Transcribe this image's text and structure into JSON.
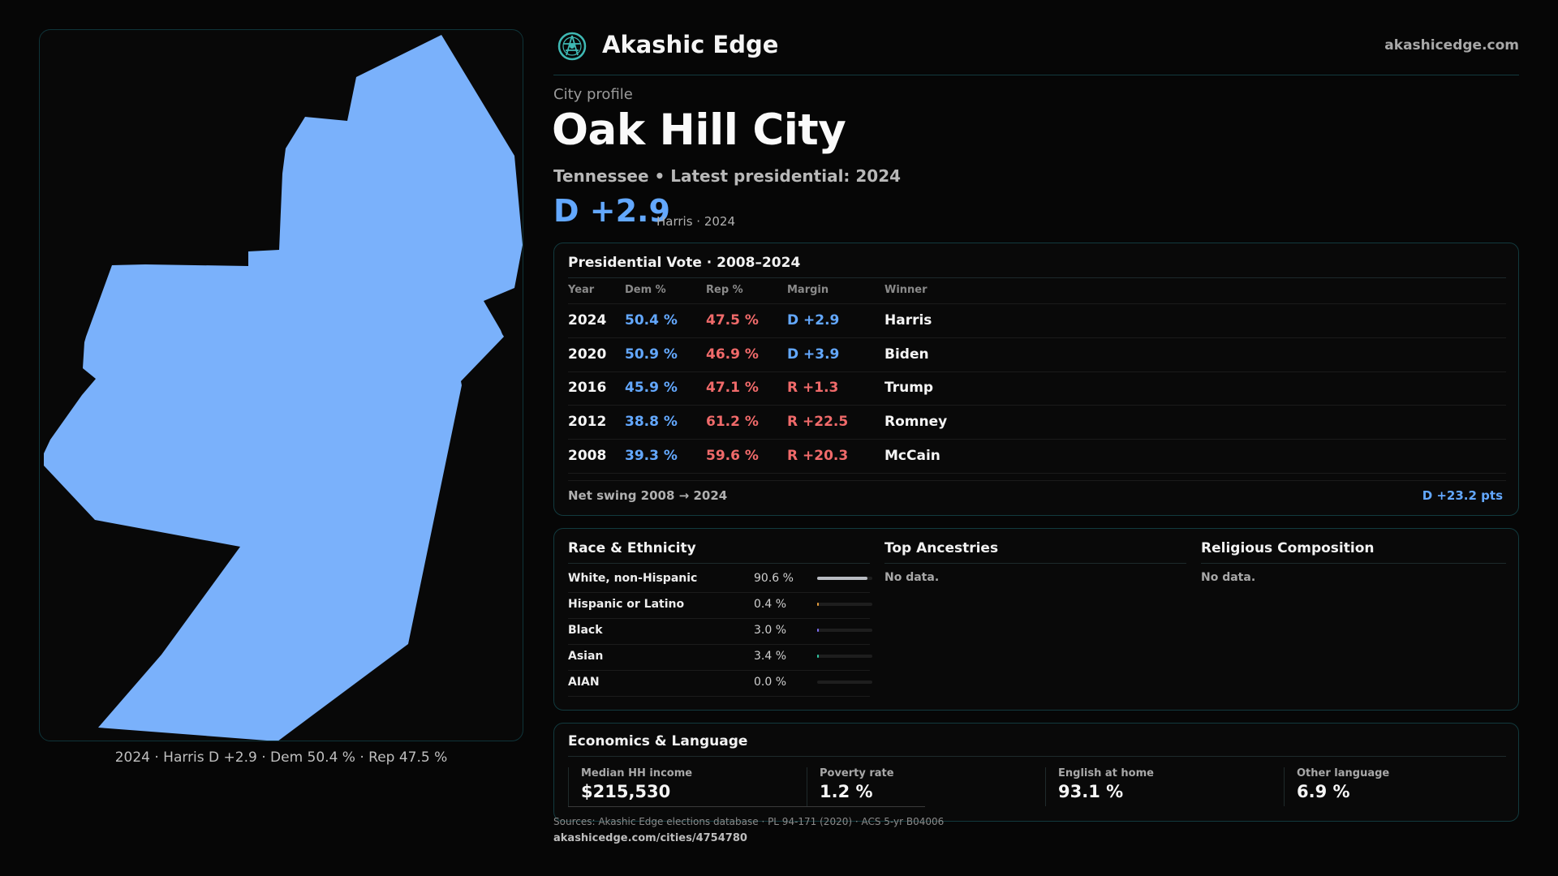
{
  "header": {
    "brand": "Akashic Edge",
    "site": "akashicedge.com"
  },
  "profile": {
    "kicker": "City profile",
    "name": "Oak Hill City",
    "subline": "Tennessee • Latest presidential: 2024",
    "headline_margin": "D +2.9",
    "headline_sub": "Harris · 2024"
  },
  "map": {
    "caption": "2024 · Harris D +2.9 · Dem 50.4 % · Rep 47.5 %",
    "fill_color": "#7ab1fb"
  },
  "vote": {
    "title": "Presidential Vote · 2008–2024",
    "columns": [
      "Year",
      "Dem %",
      "Rep %",
      "Margin",
      "Winner"
    ],
    "rows": [
      {
        "year": "2024",
        "dem": "50.4 %",
        "rep": "47.5 %",
        "margin": "D +2.9",
        "winner": "Harris",
        "party": "D"
      },
      {
        "year": "2020",
        "dem": "50.9 %",
        "rep": "46.9 %",
        "margin": "D +3.9",
        "winner": "Biden",
        "party": "D"
      },
      {
        "year": "2016",
        "dem": "45.9 %",
        "rep": "47.1 %",
        "margin": "R +1.3",
        "winner": "Trump",
        "party": "R"
      },
      {
        "year": "2012",
        "dem": "38.8 %",
        "rep": "61.2 %",
        "margin": "R +22.5",
        "winner": "Romney",
        "party": "R"
      },
      {
        "year": "2008",
        "dem": "39.3 %",
        "rep": "59.6 %",
        "margin": "R +20.3",
        "winner": "McCain",
        "party": "R"
      }
    ],
    "swing_label": "Net swing 2008 → 2024",
    "swing_value": "D +23.2 pts"
  },
  "race": {
    "title": "Race & Ethnicity",
    "rows": [
      {
        "label": "White, non-Hispanic",
        "pct": "90.6 %",
        "value": 90.6,
        "color": "#b9bcc2"
      },
      {
        "label": "Hispanic or Latino",
        "pct": "0.4 %",
        "value": 0.4,
        "color": "#e39b3c"
      },
      {
        "label": "Black",
        "pct": "3.0 %",
        "value": 3.0,
        "color": "#7c6cf0"
      },
      {
        "label": "Asian",
        "pct": "3.4 %",
        "value": 3.4,
        "color": "#2fc7a3"
      },
      {
        "label": "AIAN",
        "pct": "0.0 %",
        "value": 0.0,
        "color": "#888888"
      }
    ]
  },
  "ancestries": {
    "title": "Top Ancestries",
    "empty": "No data."
  },
  "religion": {
    "title": "Religious Composition",
    "empty": "No data."
  },
  "economics": {
    "title": "Economics & Language",
    "cells": [
      {
        "label": "Median HH income",
        "value": "$215,530"
      },
      {
        "label": "Poverty rate",
        "value": "1.2 %"
      },
      {
        "label": "English at home",
        "value": "93.1 %"
      },
      {
        "label": "Other language",
        "value": "6.9 %"
      }
    ]
  },
  "footer": {
    "sources": "Sources: Akashic Edge elections database · PL 94-171 (2020) · ACS 5-yr B04006",
    "url": "akashicedge.com/cities/4754780"
  },
  "colors": {
    "dem": "#63a8ff",
    "rep": "#f06a6a",
    "accent": "#123a3e"
  }
}
